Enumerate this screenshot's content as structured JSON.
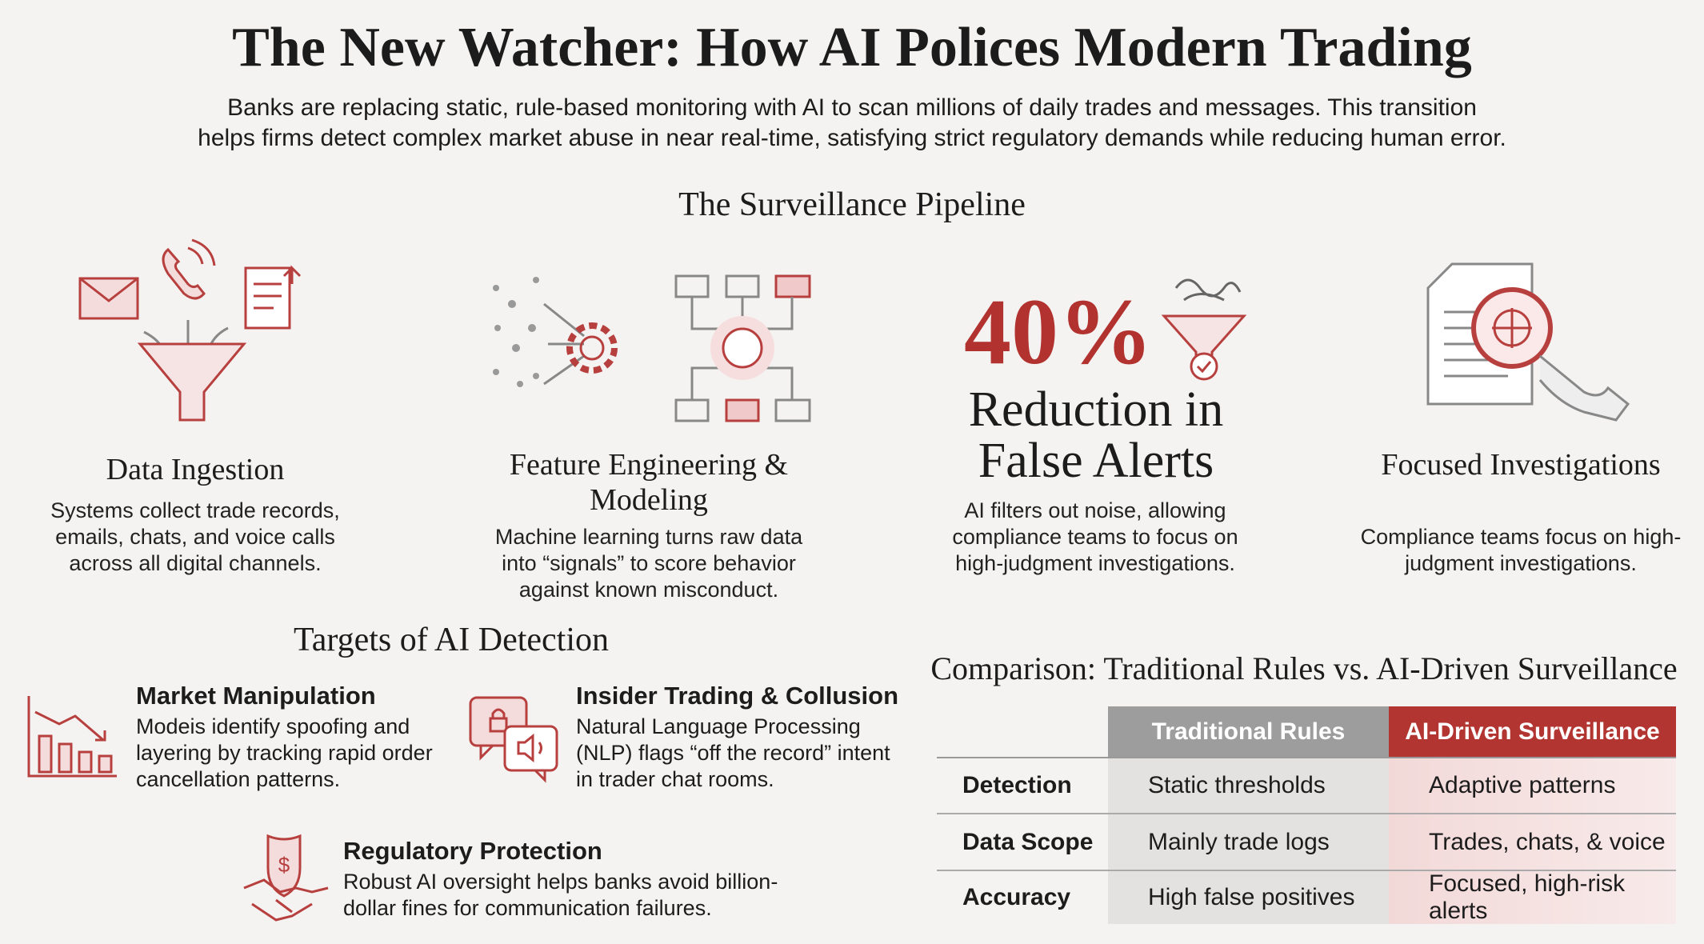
{
  "header": {
    "title": "The New Watcher: How AI Polices Modern Trading",
    "subtitle": "Banks are replacing static, rule-based monitoring with AI to scan millions of daily trades and messages. This transition helps firms detect complex market abuse in near real-time, satisfying strict regulatory demands while reducing human error."
  },
  "pipeline": {
    "title": "The Surveillance Pipeline",
    "steps": [
      {
        "title": "Data Ingestion",
        "text": "Systems collect trade records, emails, chats, and voice calls across all digital channels."
      },
      {
        "title": "Feature Engineering & Modeling",
        "text": "Machine learning turns raw data into “signals” to score behavior against known misconduct."
      },
      {
        "stat": "40%",
        "title": "Reduction in False Alerts",
        "text": "AI filters out noise, allowing compliance teams to focus on high-judgment investigations."
      },
      {
        "title": "Focused Investigations",
        "text": "Compliance teams focus on high-judgment investigations."
      }
    ]
  },
  "targets": {
    "title": "Targets of AI Detection",
    "items": [
      {
        "title": "Market Manipulation",
        "text": "Modeis identify spoofing and layering by tracking rapid order cancellation patterns."
      },
      {
        "title": "Insider Trading & Collusion",
        "text": "Natural Language Processing (NLP) flags “off the record” intent in trader chat rooms."
      },
      {
        "title": "Regulatory Protection",
        "text": "Robust AI oversight helps banks avoid billion-dollar fines for communication failures."
      }
    ]
  },
  "comparison": {
    "title": "Comparison: Traditional Rules vs. AI-Driven Surveillance",
    "header": [
      "Traditional Rules",
      "AI-Driven Surveillance"
    ],
    "rows": [
      [
        "Detection",
        "Static thresholds",
        "Adaptive patterns"
      ],
      [
        "Data Scope",
        "Mainly trade logs",
        "Trades, chats, & voice"
      ],
      [
        "Accuracy",
        "High false positives",
        "Focused, high-risk alerts"
      ]
    ]
  }
}
